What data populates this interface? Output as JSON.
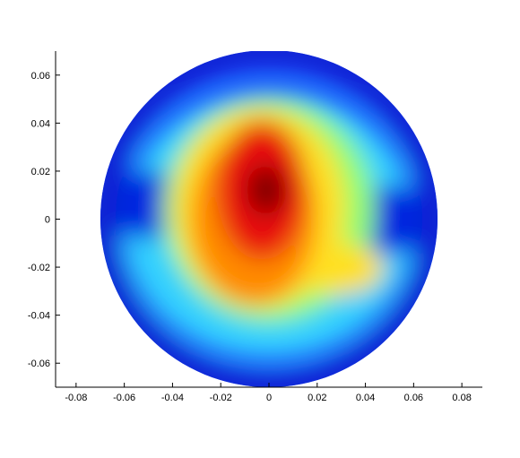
{
  "chart_data": {
    "type": "surface",
    "xlim": [
      -0.0885,
      0.0885
    ],
    "xticks": [
      -0.08,
      -0.06,
      -0.04,
      -0.02,
      0,
      0.02,
      0.04,
      0.06,
      0.08
    ],
    "ylim": [
      -0.07,
      0.07
    ],
    "yticks": [
      -0.06,
      -0.04,
      -0.02,
      0,
      0.02,
      0.04,
      0.06
    ],
    "colormap": "jet"
  }
}
